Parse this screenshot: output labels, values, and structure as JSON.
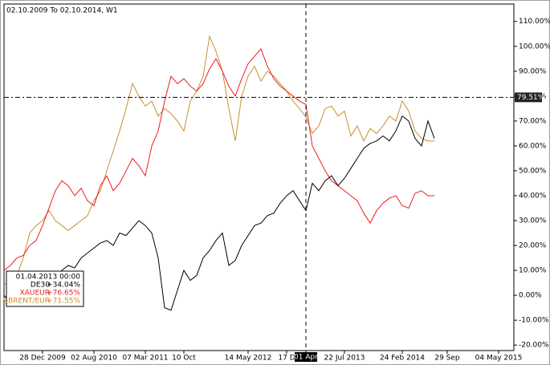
{
  "chart_data": {
    "type": "line",
    "title": "02.10.2009 To 02.10.2014, W1",
    "categories": [
      null,
      null,
      null,
      null,
      null,
      null,
      "28 Dec 2009",
      null,
      null,
      null,
      null,
      null,
      null,
      null,
      "02 Aug 2010",
      null,
      null,
      null,
      null,
      null,
      null,
      null,
      "07 Mar 2011",
      null,
      null,
      null,
      null,
      null,
      "10 Oct",
      null,
      null,
      null,
      null,
      null,
      null,
      null,
      null,
      null,
      "14 May 2012",
      null,
      null,
      null,
      null,
      null,
      "17 D",
      null,
      null,
      "01 Apr",
      null,
      null,
      null,
      null,
      null,
      "22 Jul 2013",
      null,
      null,
      null,
      null,
      null,
      null,
      null,
      null,
      "24 Feb 2014",
      null,
      null,
      null,
      null,
      null,
      null,
      "29 Sep",
      null,
      null,
      null,
      null,
      null,
      null,
      null,
      "04 May 2015"
    ],
    "series": [
      {
        "name": "DE30",
        "color": "#000000",
        "crosshair_label": "+34.04%",
        "values": [
          0,
          -3,
          2,
          3,
          6,
          4,
          5,
          8,
          7,
          10,
          12,
          11,
          15,
          17,
          19,
          21,
          22,
          20,
          25,
          24,
          27,
          30,
          28,
          25,
          15,
          -5,
          -6,
          2,
          10,
          6,
          8,
          15,
          18,
          22,
          25,
          12,
          14,
          20,
          24,
          28,
          29,
          32,
          33,
          37,
          40,
          42,
          38,
          34.04,
          45,
          42,
          46,
          48,
          44,
          47,
          51,
          55,
          59,
          61,
          62,
          64,
          62,
          66,
          72,
          70,
          63,
          60,
          70,
          63,
          null,
          null,
          null,
          null,
          null,
          null,
          null,
          null,
          null,
          null
        ]
      },
      {
        "name": "XAUEUR",
        "color": "#ee1c1c",
        "crosshair_label": "+76.65%",
        "values": [
          10,
          12,
          15,
          16,
          20,
          22,
          28,
          35,
          42,
          46,
          44,
          40,
          43,
          38,
          36,
          44,
          48,
          42,
          45,
          50,
          55,
          52,
          48,
          60,
          66,
          78,
          88,
          85,
          87,
          84,
          82,
          85,
          91,
          95,
          90,
          84,
          80,
          87,
          93,
          96,
          99,
          92,
          87,
          84,
          82,
          80,
          78,
          76.65,
          60,
          55,
          50,
          46,
          44,
          42,
          40,
          38,
          33,
          29,
          34,
          37,
          39,
          40,
          36,
          35,
          41,
          42,
          40,
          40,
          null,
          null,
          null,
          null,
          null,
          null,
          null,
          null,
          null,
          null
        ]
      },
      {
        "name": "&BRENT/EUR",
        "color": "#c8902e",
        "crosshair_label": "+71.55%",
        "values": [
          5,
          3,
          8,
          15,
          25,
          28,
          30,
          34,
          30,
          28,
          26,
          28,
          30,
          32,
          38,
          42,
          50,
          58,
          66,
          75,
          85,
          80,
          76,
          78,
          72,
          75,
          73,
          70,
          66,
          78,
          82,
          88,
          104,
          98,
          90,
          75,
          62,
          80,
          88,
          92,
          86,
          90,
          88,
          85,
          82,
          78,
          75,
          71.55,
          65,
          68,
          75,
          76,
          72,
          74,
          64,
          68,
          62,
          67,
          65,
          68,
          72,
          70,
          78,
          74,
          66,
          63,
          62,
          62,
          null,
          null,
          null,
          null,
          null,
          null,
          null,
          null,
          null,
          null
        ]
      }
    ],
    "ylim": [
      -22.2,
      117
    ],
    "yticks": [
      {
        "value": -20,
        "label": "-20.00%"
      },
      {
        "value": -10,
        "label": "-10.00%"
      },
      {
        "value": 0,
        "label": "0.00%"
      },
      {
        "value": 10,
        "label": "10.00%"
      },
      {
        "value": 20,
        "label": "20.00%"
      },
      {
        "value": 30,
        "label": "30.00%"
      },
      {
        "value": 40,
        "label": "40.00%"
      },
      {
        "value": 50,
        "label": "50.00%"
      },
      {
        "value": 60,
        "label": "60.00%"
      },
      {
        "value": 70,
        "label": "70.00%"
      },
      {
        "value": 80,
        "label": "80.00%"
      },
      {
        "value": 90,
        "label": "90.00%"
      },
      {
        "value": 100,
        "label": "100.00%"
      },
      {
        "value": 110,
        "label": "110.00%"
      }
    ],
    "crosshair": {
      "date": "01.04.2013 00:00",
      "y": {
        "value": 79.51,
        "label": "79.51%"
      }
    }
  }
}
